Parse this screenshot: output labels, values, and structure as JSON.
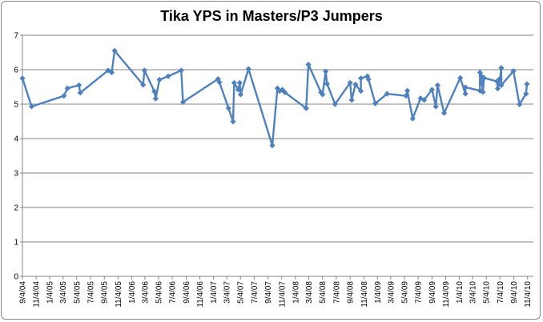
{
  "chart_data": {
    "type": "line",
    "title": "Tika YPS in Masters/P3 Jumpers",
    "xlabel": "",
    "ylabel": "",
    "ylim": [
      0,
      7
    ],
    "yticks": [
      0,
      1,
      2,
      3,
      4,
      5,
      6,
      7
    ],
    "xticks": [
      "9/4/04",
      "11/4/04",
      "1/4/05",
      "3/4/05",
      "5/4/05",
      "7/4/05",
      "9/4/05",
      "11/4/05",
      "1/4/06",
      "3/4/06",
      "5/4/06",
      "7/4/06",
      "9/4/06",
      "11/4/06",
      "1/4/07",
      "3/4/07",
      "5/4/07",
      "7/4/07",
      "9/4/07",
      "11/4/07",
      "1/4/08",
      "3/4/08",
      "5/4/08",
      "7/4/08",
      "9/4/08",
      "11/4/08",
      "1/4/09",
      "3/4/09",
      "5/4/09",
      "7/4/09",
      "9/4/09",
      "11/4/09",
      "1/4/10",
      "3/4/10",
      "5/4/10",
      "7/4/10",
      "9/4/10",
      "11/4/10"
    ],
    "xlim": [
      "2004-09-04",
      "2010-11-30"
    ],
    "grid": true,
    "legend": "none",
    "series": [
      {
        "color": "#4f81bd",
        "points": [
          [
            "2004-09-04",
            5.75
          ],
          [
            "2004-10-15",
            4.93
          ],
          [
            "2005-03-08",
            5.24
          ],
          [
            "2005-03-24",
            5.46
          ],
          [
            "2005-05-14",
            5.55
          ],
          [
            "2005-05-20",
            5.33
          ],
          [
            "2005-09-21",
            5.98
          ],
          [
            "2005-10-07",
            5.92
          ],
          [
            "2005-10-20",
            6.55
          ],
          [
            "2006-02-24",
            5.56
          ],
          [
            "2006-03-02",
            5.98
          ],
          [
            "2006-04-15",
            5.37
          ],
          [
            "2006-04-21",
            5.16
          ],
          [
            "2006-05-08",
            5.71
          ],
          [
            "2006-06-16",
            5.81
          ],
          [
            "2006-08-13",
            5.98
          ],
          [
            "2006-08-21",
            5.06
          ],
          [
            "2007-01-24",
            5.73
          ],
          [
            "2007-01-30",
            5.64
          ],
          [
            "2007-03-12",
            4.88
          ],
          [
            "2007-04-01",
            4.49
          ],
          [
            "2007-04-06",
            5.62
          ],
          [
            "2007-04-24",
            5.42
          ],
          [
            "2007-05-01",
            5.62
          ],
          [
            "2007-05-05",
            5.28
          ],
          [
            "2007-06-09",
            6.02
          ],
          [
            "2007-09-23",
            3.8
          ],
          [
            "2007-10-16",
            5.46
          ],
          [
            "2007-10-26",
            5.38
          ],
          [
            "2007-11-07",
            5.42
          ],
          [
            "2007-11-18",
            5.34
          ],
          [
            "2008-02-21",
            4.88
          ],
          [
            "2008-03-02",
            6.15
          ],
          [
            "2008-04-27",
            5.34
          ],
          [
            "2008-05-04",
            5.28
          ],
          [
            "2008-05-18",
            5.95
          ],
          [
            "2008-05-24",
            5.59
          ],
          [
            "2008-06-29",
            5.0
          ],
          [
            "2008-09-04",
            5.62
          ],
          [
            "2008-09-11",
            5.12
          ],
          [
            "2008-09-28",
            5.57
          ],
          [
            "2008-10-22",
            5.38
          ],
          [
            "2008-10-22",
            5.75
          ],
          [
            "2008-11-20",
            5.81
          ],
          [
            "2008-11-25",
            5.72
          ],
          [
            "2008-12-25",
            5.02
          ],
          [
            "2009-02-16",
            5.3
          ],
          [
            "2009-05-11",
            5.24
          ],
          [
            "2009-05-17",
            5.39
          ],
          [
            "2009-06-10",
            4.58
          ],
          [
            "2009-07-15",
            5.17
          ],
          [
            "2009-07-31",
            5.12
          ],
          [
            "2009-09-04",
            5.42
          ],
          [
            "2009-09-21",
            4.93
          ],
          [
            "2009-09-29",
            5.55
          ],
          [
            "2009-10-28",
            4.74
          ],
          [
            "2010-01-08",
            5.76
          ],
          [
            "2010-01-31",
            5.3
          ],
          [
            "2010-01-31",
            5.49
          ],
          [
            "2010-04-06",
            5.39
          ],
          [
            "2010-04-06",
            5.92
          ],
          [
            "2010-04-12",
            5.62
          ],
          [
            "2010-04-12",
            5.82
          ],
          [
            "2010-04-19",
            5.35
          ],
          [
            "2010-04-24",
            5.76
          ],
          [
            "2010-06-21",
            5.66
          ],
          [
            "2010-06-24",
            5.45
          ],
          [
            "2010-07-04",
            5.74
          ],
          [
            "2010-07-10",
            6.05
          ],
          [
            "2010-07-10",
            5.55
          ],
          [
            "2010-09-02",
            5.96
          ],
          [
            "2010-09-29",
            4.99
          ],
          [
            "2010-10-28",
            5.3
          ],
          [
            "2010-11-01",
            5.58
          ]
        ]
      }
    ]
  }
}
